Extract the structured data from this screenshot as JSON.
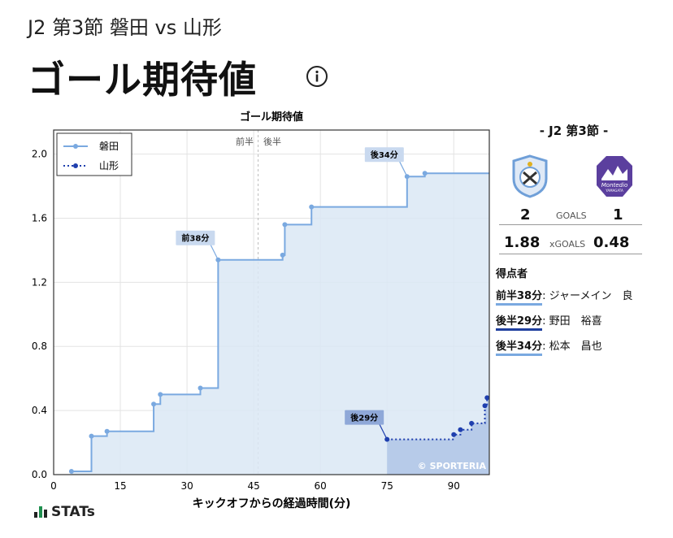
{
  "header": {
    "subtitle": "J2 第3節 磐田 vs 山形",
    "title": "ゴール期待値",
    "info_icon": "info-icon"
  },
  "chart_data": {
    "type": "line",
    "title": "ゴール期待値",
    "xlabel": "キックオフからの経過時間(分)",
    "ylabel": "",
    "xlim": [
      0,
      98
    ],
    "ylim": [
      0,
      2.15
    ],
    "xticks": [
      0,
      15,
      30,
      45,
      60,
      75,
      90
    ],
    "yticks": [
      0.0,
      0.4,
      0.8,
      1.2,
      1.6,
      2.0
    ],
    "grid": true,
    "legend_position": "top-left",
    "half_marker": {
      "x": 46,
      "left_label": "前半",
      "right_label": "後半"
    },
    "watermark": "© SPORTERIA",
    "series": [
      {
        "name": "磐田",
        "color": "#7aa9e0",
        "style": "solid-step",
        "points": [
          [
            4,
            0.02
          ],
          [
            8.5,
            0.24
          ],
          [
            12,
            0.27
          ],
          [
            22.5,
            0.44
          ],
          [
            24,
            0.5
          ],
          [
            33,
            0.54
          ],
          [
            37,
            1.34
          ],
          [
            51.5,
            1.37
          ],
          [
            52,
            1.56
          ],
          [
            58,
            1.67
          ],
          [
            79.5,
            1.86
          ],
          [
            83.5,
            1.88
          ],
          [
            98,
            1.88
          ]
        ]
      },
      {
        "name": "山形",
        "color": "#1f3fae",
        "style": "dotted-step",
        "points": [
          [
            75,
            0.22
          ],
          [
            90,
            0.25
          ],
          [
            91.5,
            0.28
          ],
          [
            94,
            0.32
          ],
          [
            97,
            0.43
          ],
          [
            97.5,
            0.48
          ],
          [
            98,
            0.48
          ]
        ]
      }
    ],
    "annotations": [
      {
        "label": "前38分",
        "x": 37,
        "y": 1.34,
        "series": 0
      },
      {
        "label": "後29分",
        "x": 75,
        "y": 0.22,
        "series": 1
      },
      {
        "label": "後34分",
        "x": 79.5,
        "y": 1.86,
        "series": 0
      }
    ]
  },
  "side": {
    "round": "- J2 第3節 -",
    "home_score": "2",
    "away_score": "1",
    "goals_label": "GOALS",
    "home_xg": "1.88",
    "away_xg": "0.48",
    "xg_label": "xGOALS",
    "away_crest_text": "Montedio",
    "away_crest_sub": "YAMAGATA",
    "scorers_title": "得点者",
    "scorers": [
      {
        "time": "前半38分",
        "name": "ジャーメイン　良",
        "team": "home"
      },
      {
        "time": "後半29分",
        "name": "野田　裕喜",
        "team": "away"
      },
      {
        "time": "後半34分",
        "name": "松本　昌也",
        "team": "home"
      }
    ]
  },
  "footer": {
    "brand": "STATs"
  }
}
